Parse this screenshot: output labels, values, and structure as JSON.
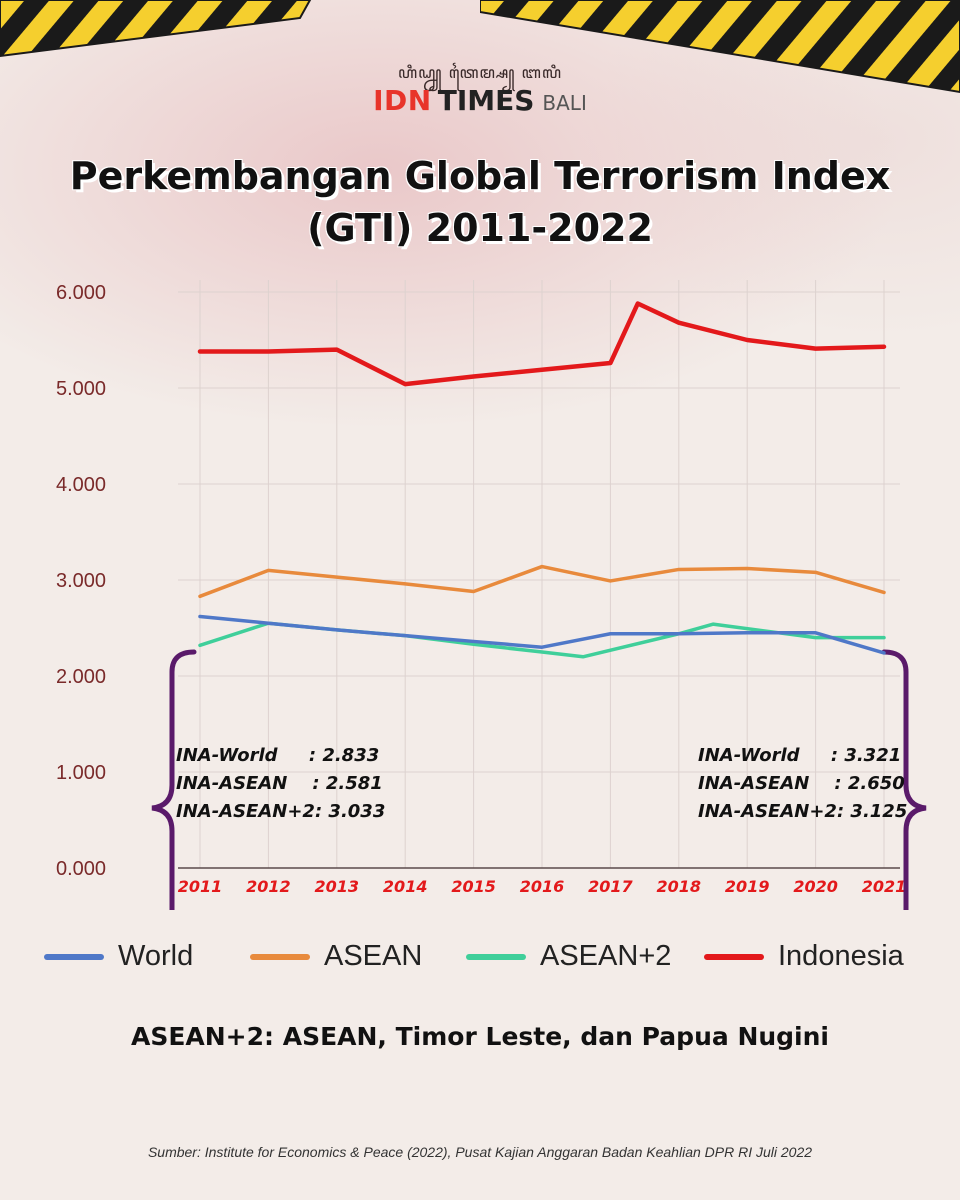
{
  "header": {
    "logo_script": "ꦲꦶꦝ꧀ꦤ꧀ ꦠꦻꦩ꧀ꦱ꧀ ꦧꦭꦶ",
    "logo_idn": "IDN",
    "logo_times": "TIMES",
    "logo_bali": "BALI"
  },
  "title_line1": "Perkembangan Global Terrorism Index",
  "title_line2": "(GTI) 2011-2022",
  "colors": {
    "world": "#4f78c8",
    "asean": "#e88a3c",
    "asean2": "#3fcf9a",
    "indonesia": "#e3191b",
    "bracket": "#5a1a6a",
    "year_label": "#e3191b",
    "y_label": "#7a2a2a",
    "tape_yellow": "#f5cf2e",
    "tape_black": "#1a1a1a"
  },
  "chart_data": {
    "type": "line",
    "title": "Perkembangan Global Terrorism Index (GTI) 2011-2022",
    "categories": [
      "2011",
      "2012",
      "2013",
      "2014",
      "2015",
      "2016",
      "2017",
      "2018",
      "2019",
      "2020",
      "2021"
    ],
    "x_tick_labels": [
      "2011",
      "2012",
      "2013",
      "2014",
      "2015",
      "2016",
      "2017",
      "2018",
      "2019",
      "2020",
      "2021"
    ],
    "y_tick_labels": [
      "0.000",
      "1.000",
      "2.000",
      "3.000",
      "4.000",
      "5.000",
      "6.000"
    ],
    "ylim": [
      0,
      6
    ],
    "grid": true,
    "legend_position": "bottom",
    "series": [
      {
        "name": "World",
        "key": "world",
        "points": [
          [
            2011,
            2.62
          ],
          [
            2012,
            2.55
          ],
          [
            2013,
            2.48
          ],
          [
            2014,
            2.42
          ],
          [
            2015,
            2.36
          ],
          [
            2016,
            2.3
          ],
          [
            2017,
            2.44
          ],
          [
            2018,
            2.44
          ],
          [
            2019,
            2.45
          ],
          [
            2020,
            2.45
          ],
          [
            2021,
            2.24
          ]
        ]
      },
      {
        "name": "ASEAN",
        "key": "asean",
        "points": [
          [
            2011,
            2.83
          ],
          [
            2012,
            3.1
          ],
          [
            2013,
            3.03
          ],
          [
            2014,
            2.96
          ],
          [
            2015,
            2.88
          ],
          [
            2016,
            3.14
          ],
          [
            2017,
            2.99
          ],
          [
            2018,
            3.11
          ],
          [
            2019,
            3.12
          ],
          [
            2020,
            3.08
          ],
          [
            2021,
            2.87
          ]
        ]
      },
      {
        "name": "ASEAN+2",
        "key": "asean2",
        "points": [
          [
            2011,
            2.32
          ],
          [
            2012,
            2.55
          ],
          [
            2013,
            2.48
          ],
          [
            2014,
            2.42
          ],
          [
            2015,
            2.33
          ],
          [
            2016,
            2.25
          ],
          [
            2016.6,
            2.2
          ],
          [
            2018,
            2.44
          ],
          [
            2018.5,
            2.54
          ],
          [
            2020,
            2.4
          ],
          [
            2021,
            2.4
          ]
        ]
      },
      {
        "name": "Indonesia",
        "key": "indonesia",
        "points": [
          [
            2011,
            5.38
          ],
          [
            2012,
            5.38
          ],
          [
            2013,
            5.4
          ],
          [
            2014,
            5.04
          ],
          [
            2015,
            5.12
          ],
          [
            2016,
            5.19
          ],
          [
            2017,
            5.26
          ],
          [
            2017.4,
            5.88
          ],
          [
            2018,
            5.68
          ],
          [
            2019,
            5.5
          ],
          [
            2020,
            5.41
          ],
          [
            2021,
            5.43
          ]
        ]
      }
    ],
    "annotations": {
      "left": [
        {
          "label": "INA-World",
          "sep": "     : ",
          "value": "2.833"
        },
        {
          "label": "INA-ASEAN",
          "sep": "    : ",
          "value": "2.581"
        },
        {
          "label": "INA-ASEAN+2",
          "sep": ": ",
          "value": "3.033"
        }
      ],
      "right": [
        {
          "label": "INA-World",
          "sep": "     : ",
          "value": "3.321"
        },
        {
          "label": "INA-ASEAN",
          "sep": "    : ",
          "value": "2.650"
        },
        {
          "label": "INA-ASEAN+2",
          "sep": ": ",
          "value": "3.125"
        }
      ]
    }
  },
  "note": "ASEAN+2: ASEAN, Timor Leste, dan Papua Nugini",
  "source": "Sumber: Institute for Economics & Peace (2022), Pusat Kajian Anggaran Badan Keahlian DPR RI Juli 2022"
}
